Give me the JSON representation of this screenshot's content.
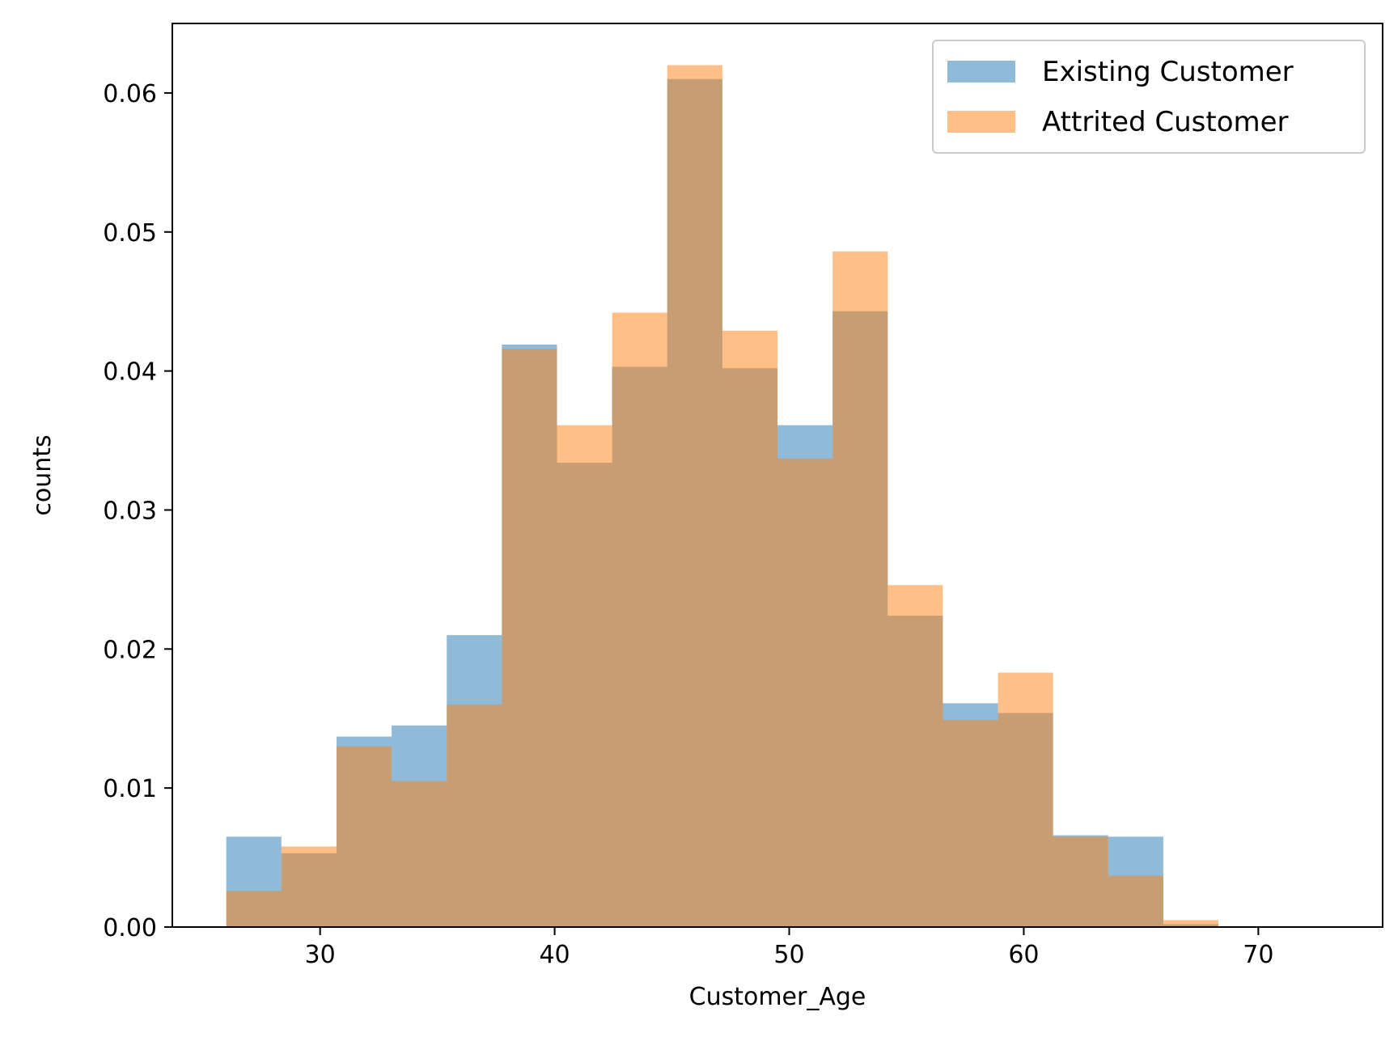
{
  "chart_data": {
    "type": "bar",
    "histogram": true,
    "xlabel": "Customer_Age",
    "ylabel": "counts",
    "xlim": [
      23.7,
      75.3
    ],
    "ylim": [
      0,
      0.065
    ],
    "xticks": [
      30,
      40,
      50,
      60,
      70
    ],
    "yticks": [
      0,
      0.01,
      0.02,
      0.03,
      0.04,
      0.05,
      0.06
    ],
    "ytick_labels": [
      "0.00",
      "0.01",
      "0.02",
      "0.03",
      "0.04",
      "0.05",
      "0.06"
    ],
    "bin_edges": [
      26.0,
      28.35,
      30.7,
      33.05,
      35.4,
      37.75,
      40.1,
      42.45,
      44.8,
      47.15,
      49.5,
      51.85,
      54.2,
      56.55,
      58.9,
      61.25,
      63.6,
      65.95,
      68.3,
      70.65,
      73.0
    ],
    "series": [
      {
        "name": "Existing Customer",
        "color": "#1f77b4",
        "alpha": 0.5,
        "values": [
          0.0065,
          0.0053,
          0.0137,
          0.0145,
          0.021,
          0.0419,
          0.0334,
          0.0403,
          0.061,
          0.0402,
          0.0361,
          0.0443,
          0.0224,
          0.0161,
          0.0154,
          0.0066,
          0.0065,
          0.0002,
          0.0,
          0.0
        ]
      },
      {
        "name": "Attrited Customer",
        "color": "#ff7f0e",
        "alpha": 0.5,
        "values": [
          0.0026,
          0.0058,
          0.013,
          0.0105,
          0.016,
          0.0416,
          0.0361,
          0.0442,
          0.062,
          0.0429,
          0.0337,
          0.0486,
          0.0246,
          0.0149,
          0.0183,
          0.0065,
          0.0037,
          0.0005,
          0.0,
          0.0
        ]
      }
    ],
    "legend_position": "top-right",
    "grid": false
  }
}
